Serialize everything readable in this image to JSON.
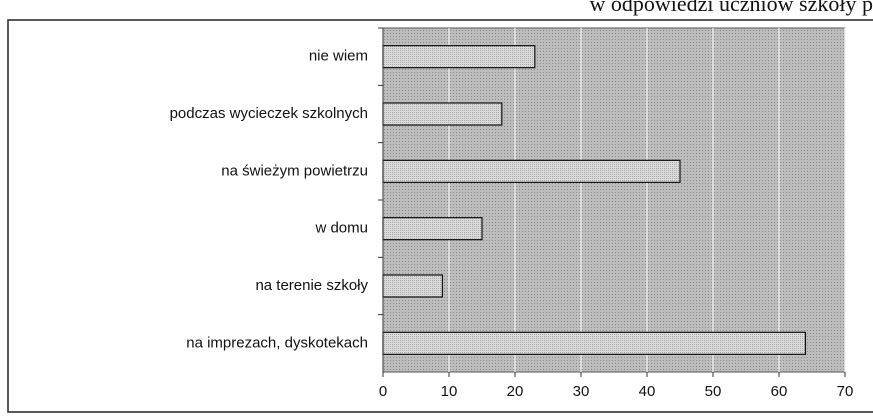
{
  "chart_data": {
    "type": "bar",
    "orientation": "horizontal",
    "caption": "w odpowiedzi uczniów szkoły p",
    "categories": [
      "nie wiem",
      "podczas wycieczek szkolnych",
      "na świeżym powietrzu",
      "w domu",
      "na terenie szkoły",
      "na imprezach, dyskotekach"
    ],
    "values": [
      23,
      18,
      45,
      15,
      9,
      64
    ],
    "color": "#d4d4d4",
    "xlim": [
      0,
      70
    ],
    "xticks": [
      0,
      10,
      20,
      30,
      40,
      50,
      60,
      70
    ],
    "grid": true
  }
}
